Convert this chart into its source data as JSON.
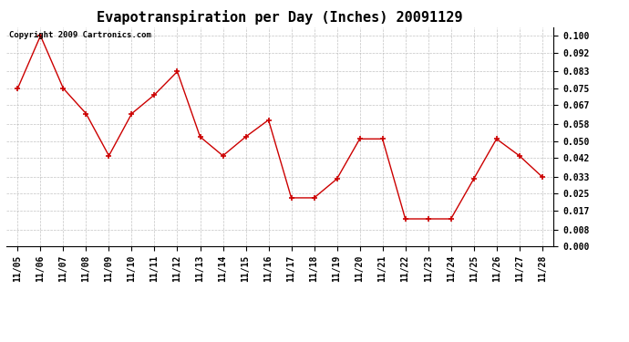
{
  "title": "Evapotranspiration per Day (Inches) 20091129",
  "copyright": "Copyright 2009 Cartronics.com",
  "dates": [
    "11/05",
    "11/06",
    "11/07",
    "11/08",
    "11/09",
    "11/10",
    "11/11",
    "11/12",
    "11/13",
    "11/14",
    "11/15",
    "11/16",
    "11/17",
    "11/18",
    "11/19",
    "11/20",
    "11/21",
    "11/22",
    "11/23",
    "11/24",
    "11/25",
    "11/26",
    "11/27",
    "11/28"
  ],
  "values": [
    0.075,
    0.1,
    0.075,
    0.063,
    0.043,
    0.063,
    0.072,
    0.083,
    0.052,
    0.043,
    0.052,
    0.06,
    0.023,
    0.023,
    0.032,
    0.051,
    0.051,
    0.013,
    0.013,
    0.013,
    0.032,
    0.051,
    0.043,
    0.033
  ],
  "line_color": "#cc0000",
  "marker_color": "#cc0000",
  "bg_color": "#ffffff",
  "grid_color": "#aaaaaa",
  "ylim": [
    0.0,
    0.104
  ],
  "yticks": [
    0.0,
    0.008,
    0.017,
    0.025,
    0.033,
    0.042,
    0.05,
    0.058,
    0.067,
    0.075,
    0.083,
    0.092,
    0.1
  ],
  "title_fontsize": 11,
  "copyright_fontsize": 6.5,
  "tick_fontsize": 7,
  "fig_width": 6.9,
  "fig_height": 3.75,
  "dpi": 100
}
